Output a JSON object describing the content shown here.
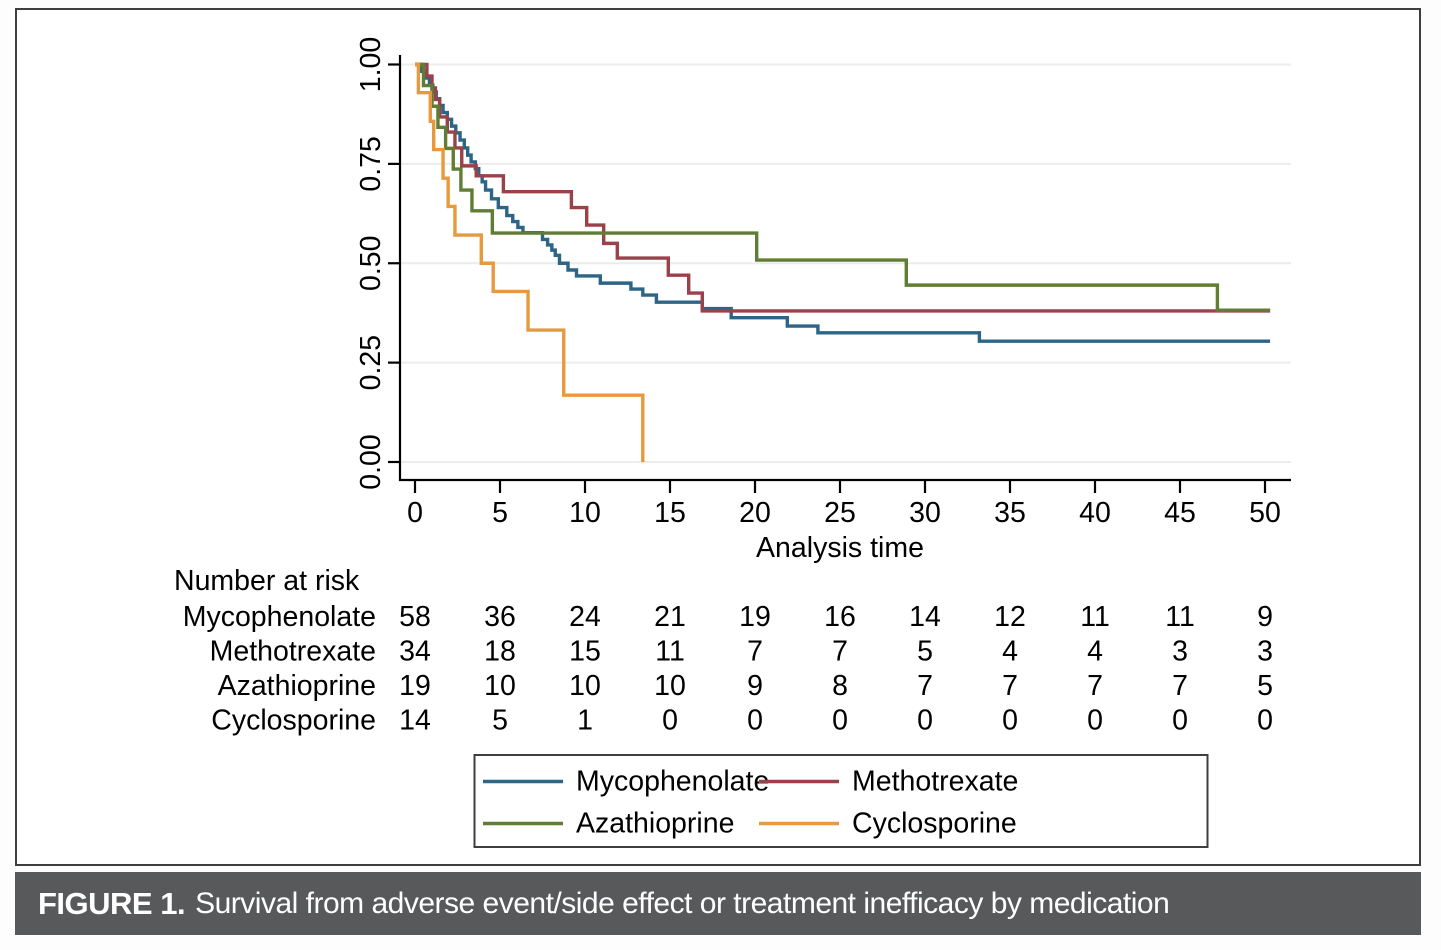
{
  "caption": {
    "label": "FIGURE 1.",
    "text": "Survival from adverse event/side effect or treatment inefficacy by medication"
  },
  "chart_data": {
    "type": "line",
    "subtype": "kaplan-meier-step",
    "title": "",
    "xlabel": "Analysis time",
    "ylabel": "",
    "xlim": [
      0,
      50
    ],
    "ylim": [
      0.0,
      1.0
    ],
    "x_ticks": [
      0,
      5,
      10,
      15,
      20,
      25,
      30,
      35,
      40,
      45,
      50
    ],
    "y_ticks": [
      "0.00",
      "0.25",
      "0.50",
      "0.75",
      "1.00"
    ],
    "grid": "horizontal",
    "legend_position": "bottom-box",
    "series": [
      {
        "name": "Mycophenolate",
        "color": "#2d6587",
        "points": [
          [
            0,
            1
          ],
          [
            0.35,
            0.983
          ],
          [
            0.6,
            0.966
          ],
          [
            0.85,
            0.948
          ],
          [
            1.05,
            0.931
          ],
          [
            1.25,
            0.914
          ],
          [
            1.45,
            0.897
          ],
          [
            1.65,
            0.879
          ],
          [
            1.9,
            0.862
          ],
          [
            2.15,
            0.845
          ],
          [
            2.4,
            0.828
          ],
          [
            2.65,
            0.81
          ],
          [
            2.9,
            0.79
          ],
          [
            3.1,
            0.772
          ],
          [
            3.3,
            0.755
          ],
          [
            3.55,
            0.738
          ],
          [
            3.75,
            0.72
          ],
          [
            3.95,
            0.705
          ],
          [
            4.15,
            0.684
          ],
          [
            4.5,
            0.662
          ],
          [
            4.9,
            0.64
          ],
          [
            5.4,
            0.62
          ],
          [
            5.75,
            0.605
          ],
          [
            6.05,
            0.59
          ],
          [
            6.35,
            0.577
          ],
          [
            7.5,
            0.56
          ],
          [
            7.8,
            0.546
          ],
          [
            8.05,
            0.533
          ],
          [
            8.25,
            0.52
          ],
          [
            8.5,
            0.5
          ],
          [
            9,
            0.483
          ],
          [
            9.5,
            0.468
          ],
          [
            10.9,
            0.45
          ],
          [
            12.7,
            0.435
          ],
          [
            13.4,
            0.42
          ],
          [
            14.2,
            0.402
          ],
          [
            16.9,
            0.386
          ],
          [
            18.6,
            0.363
          ],
          [
            21.9,
            0.342
          ],
          [
            23.7,
            0.325
          ],
          [
            33.2,
            0.304
          ],
          [
            50.3,
            0.304
          ]
        ]
      },
      {
        "name": "Methotrexate",
        "color": "#9a424a",
        "points": [
          [
            0,
            1
          ],
          [
            0.7,
            0.971
          ],
          [
            1,
            0.941
          ],
          [
            1.2,
            0.912
          ],
          [
            1.45,
            0.868
          ],
          [
            1.9,
            0.83
          ],
          [
            2.35,
            0.79
          ],
          [
            2.75,
            0.745
          ],
          [
            3.6,
            0.72
          ],
          [
            5.2,
            0.68
          ],
          [
            9.2,
            0.64
          ],
          [
            10.1,
            0.596
          ],
          [
            11.1,
            0.55
          ],
          [
            11.9,
            0.513
          ],
          [
            14.9,
            0.47
          ],
          [
            16.1,
            0.425
          ],
          [
            16.9,
            0.38
          ],
          [
            50.3,
            0.38
          ]
        ]
      },
      {
        "name": "Azathioprine",
        "color": "#607d35",
        "points": [
          [
            0,
            1
          ],
          [
            0.5,
            0.947
          ],
          [
            1,
            0.895
          ],
          [
            1.35,
            0.842
          ],
          [
            1.8,
            0.789
          ],
          [
            2.25,
            0.737
          ],
          [
            2.7,
            0.684
          ],
          [
            3.35,
            0.632
          ],
          [
            4.55,
            0.576
          ],
          [
            20.1,
            0.508
          ],
          [
            28.9,
            0.445
          ],
          [
            47.2,
            0.382
          ],
          [
            50.3,
            0.382
          ]
        ]
      },
      {
        "name": "Cyclosporine",
        "color": "#e79a3d",
        "points": [
          [
            0,
            1
          ],
          [
            0.2,
            0.929
          ],
          [
            0.9,
            0.857
          ],
          [
            1.1,
            0.786
          ],
          [
            1.65,
            0.714
          ],
          [
            1.95,
            0.643
          ],
          [
            2.35,
            0.571
          ],
          [
            3.9,
            0.5
          ],
          [
            4.6,
            0.429
          ],
          [
            6.65,
            0.332
          ],
          [
            8.75,
            0.168
          ],
          [
            13.4,
            0
          ]
        ]
      }
    ]
  },
  "risk_table": {
    "title": "Number at risk",
    "times": [
      0,
      5,
      10,
      15,
      20,
      25,
      30,
      35,
      40,
      45,
      50
    ],
    "rows": [
      {
        "label": "Mycophenolate",
        "counts": [
          58,
          36,
          24,
          21,
          19,
          16,
          14,
          12,
          11,
          11,
          9
        ]
      },
      {
        "label": "Methotrexate",
        "counts": [
          34,
          18,
          15,
          11,
          7,
          7,
          5,
          4,
          4,
          3,
          3
        ]
      },
      {
        "label": "Azathioprine",
        "counts": [
          19,
          10,
          10,
          10,
          9,
          8,
          7,
          7,
          7,
          7,
          5
        ]
      },
      {
        "label": "Cyclosporine",
        "counts": [
          14,
          5,
          1,
          0,
          0,
          0,
          0,
          0,
          0,
          0,
          0
        ]
      }
    ]
  },
  "legend": {
    "entries": [
      "Mycophenolate",
      "Methotrexate",
      "Azathioprine",
      "Cyclosporine"
    ]
  },
  "colors": {
    "axis": "#000000",
    "gridline": "#ececec",
    "frame_border": "#3e3e40",
    "caption_bar_bg": "#58595b",
    "caption_text": "#ffffff"
  }
}
